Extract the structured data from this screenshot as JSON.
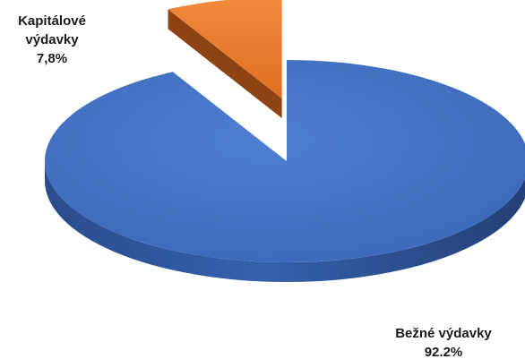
{
  "chart_data": {
    "type": "pie",
    "style": "3d-exploded",
    "slices": [
      {
        "label_lines": [
          "Bežné výdavky",
          "92.2%"
        ],
        "value": 92.2,
        "color": "#4472C4",
        "side_color": "#2F5597"
      },
      {
        "label_lines": [
          "Kapitálové",
          "výdavky",
          "7,8%"
        ],
        "value": 7.8,
        "color": "#ED7D31",
        "side_color": "#8E4312"
      }
    ],
    "legend": "none",
    "exploded_slice": "Kapitálové"
  }
}
